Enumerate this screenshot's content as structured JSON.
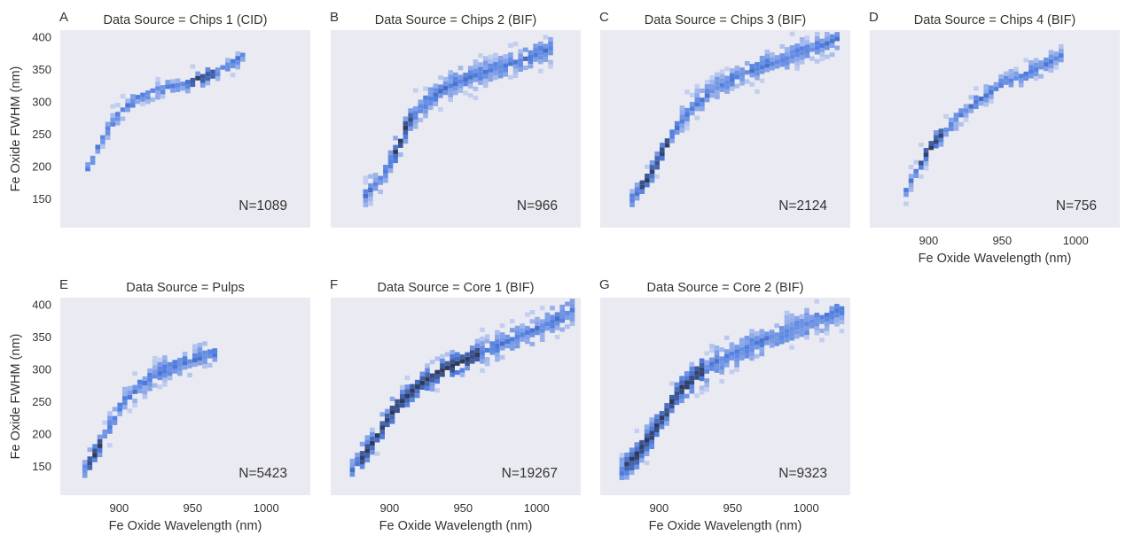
{
  "figure": {
    "ylabel": "Fe Oxide FWHM (nm)",
    "xlabel": "Fe Oxide Wavelength (nm)",
    "background": "#eaeaf2",
    "bin_color_light": "#c3cff0",
    "bin_color_mid": "#4f7de0",
    "bin_color_dark": "#2e3a5e"
  },
  "chart_data": [
    {
      "type": "heatmap",
      "letter": "A",
      "title": "Data Source = Chips 1 (CID)",
      "n_label": "N=1089",
      "xlim": [
        860,
        1030
      ],
      "ylim": [
        105,
        410
      ],
      "yticks": [
        150,
        200,
        250,
        300,
        350,
        400
      ],
      "xticks": [],
      "show_ylabel": true,
      "show_xlabel": false,
      "curve": [
        [
          877,
          190
        ],
        [
          885,
          230
        ],
        [
          895,
          270
        ],
        [
          910,
          300
        ],
        [
          925,
          315
        ],
        [
          940,
          320
        ],
        [
          955,
          333
        ],
        [
          970,
          348
        ],
        [
          985,
          370
        ]
      ],
      "spread": 10,
      "dense_range": [
        945,
        965
      ]
    },
    {
      "type": "heatmap",
      "letter": "B",
      "title": "Data Source = Chips 2 (BIF)",
      "n_label": "N=966",
      "xlim": [
        860,
        1030
      ],
      "ylim": [
        105,
        410
      ],
      "yticks": [],
      "xticks": [],
      "show_ylabel": false,
      "show_xlabel": false,
      "curve": [
        [
          882,
          150
        ],
        [
          895,
          185
        ],
        [
          905,
          230
        ],
        [
          910,
          260
        ],
        [
          920,
          290
        ],
        [
          935,
          315
        ],
        [
          955,
          335
        ],
        [
          975,
          350
        ],
        [
          995,
          365
        ],
        [
          1010,
          380
        ]
      ],
      "spread": 16,
      "dense_range": [
        900,
        915
      ]
    },
    {
      "type": "heatmap",
      "letter": "C",
      "title": "Data Source = Chips 3 (BIF)",
      "n_label": "N=2124",
      "xlim": [
        860,
        1030
      ],
      "ylim": [
        105,
        410
      ],
      "yticks": [],
      "xticks": [],
      "show_ylabel": false,
      "show_xlabel": false,
      "curve": [
        [
          880,
          145
        ],
        [
          890,
          175
        ],
        [
          900,
          215
        ],
        [
          910,
          255
        ],
        [
          920,
          285
        ],
        [
          935,
          315
        ],
        [
          955,
          340
        ],
        [
          980,
          360
        ],
        [
          1005,
          380
        ],
        [
          1020,
          395
        ]
      ],
      "spread": 14,
      "dense_range": [
        885,
        905
      ]
    },
    {
      "type": "heatmap",
      "letter": "D",
      "title": "Data Source = Chips 4 (BIF)",
      "n_label": "N=756",
      "xlim": [
        860,
        1030
      ],
      "ylim": [
        105,
        410
      ],
      "yticks": [],
      "xticks": [
        900,
        950,
        1000
      ],
      "show_ylabel": false,
      "show_xlabel": true,
      "curve": [
        [
          883,
          160
        ],
        [
          890,
          190
        ],
        [
          898,
          220
        ],
        [
          907,
          245
        ],
        [
          915,
          265
        ],
        [
          930,
          295
        ],
        [
          950,
          325
        ],
        [
          975,
          350
        ],
        [
          990,
          370
        ]
      ],
      "spread": 11,
      "dense_range": [
        893,
        910
      ]
    },
    {
      "type": "heatmap",
      "letter": "E",
      "title": "Data Source = Pulps",
      "n_label": "N=5423",
      "xlim": [
        860,
        1030
      ],
      "ylim": [
        105,
        410
      ],
      "yticks": [
        150,
        200,
        250,
        300,
        350,
        400
      ],
      "xticks": [
        900,
        950,
        1000
      ],
      "show_ylabel": true,
      "show_xlabel": true,
      "curve": [
        [
          875,
          140
        ],
        [
          882,
          165
        ],
        [
          890,
          200
        ],
        [
          900,
          240
        ],
        [
          912,
          270
        ],
        [
          925,
          290
        ],
        [
          940,
          305
        ],
        [
          955,
          315
        ],
        [
          965,
          320
        ]
      ],
      "spread": 14,
      "dense_range": [
        877,
        888
      ]
    },
    {
      "type": "heatmap",
      "letter": "F",
      "title": "Data Source = Core 1 (BIF)",
      "n_label": "N=19267",
      "xlim": [
        860,
        1030
      ],
      "ylim": [
        105,
        410
      ],
      "yticks": [],
      "xticks": [
        900,
        950,
        1000
      ],
      "show_ylabel": false,
      "show_xlabel": true,
      "curve": [
        [
          873,
          140
        ],
        [
          882,
          165
        ],
        [
          892,
          200
        ],
        [
          902,
          235
        ],
        [
          915,
          265
        ],
        [
          930,
          290
        ],
        [
          945,
          305
        ],
        [
          960,
          320
        ],
        [
          985,
          345
        ],
        [
          1010,
          370
        ],
        [
          1025,
          390
        ]
      ],
      "spread": 16,
      "dense_range": [
        878,
        960
      ]
    },
    {
      "type": "heatmap",
      "letter": "G",
      "title": "Data Source = Core 2 (BIF)",
      "n_label": "N=9323",
      "xlim": [
        860,
        1030
      ],
      "ylim": [
        105,
        410
      ],
      "yticks": [],
      "xticks": [
        900,
        950,
        1000
      ],
      "show_ylabel": false,
      "show_xlabel": true,
      "curve": [
        [
          873,
          140
        ],
        [
          882,
          160
        ],
        [
          892,
          190
        ],
        [
          902,
          225
        ],
        [
          912,
          262
        ],
        [
          925,
          290
        ],
        [
          945,
          315
        ],
        [
          970,
          340
        ],
        [
          1000,
          365
        ],
        [
          1025,
          390
        ]
      ],
      "spread": 18,
      "dense_range": [
        875,
        930
      ]
    }
  ]
}
